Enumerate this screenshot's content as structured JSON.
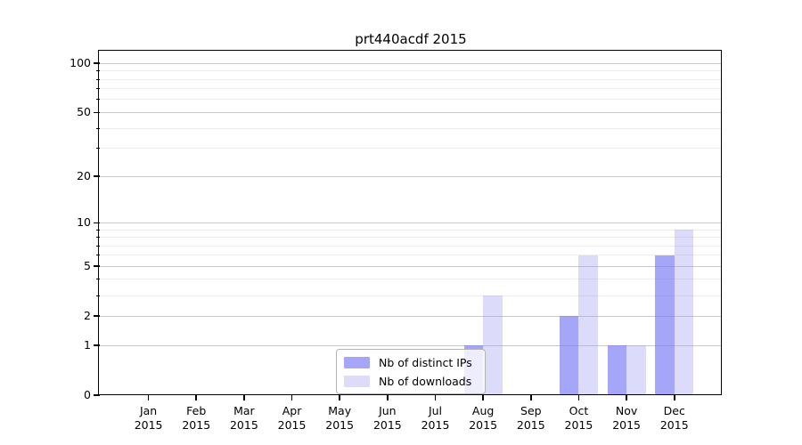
{
  "chart_data": {
    "type": "bar",
    "title": "prt440acdf 2015",
    "categories": [
      "Jan",
      "Feb",
      "Mar",
      "Apr",
      "May",
      "Jun",
      "Jul",
      "Aug",
      "Sep",
      "Oct",
      "Nov",
      "Dec"
    ],
    "x_tick_second_line": "2015",
    "series": [
      {
        "name": "Nb of distinct IPs",
        "color_key": "ips",
        "values": [
          0,
          0,
          0,
          0,
          0,
          0,
          0,
          1,
          0,
          2,
          1,
          6
        ]
      },
      {
        "name": "Nb of downloads",
        "color_key": "downloads",
        "values": [
          0,
          0,
          0,
          0,
          0,
          0,
          0,
          3,
          0,
          6,
          1,
          9
        ]
      }
    ],
    "yscale": "log1p",
    "yticks": [
      0,
      1,
      2,
      5,
      10,
      20,
      50,
      100
    ],
    "yticks_minor": [
      3,
      4,
      6,
      7,
      8,
      9,
      30,
      40,
      60,
      70,
      80,
      90
    ],
    "ylim": [
      0,
      118
    ],
    "xlabel": "",
    "ylabel": "",
    "grid": "on",
    "legend_position": "lower-center"
  },
  "colors": {
    "ips": "rgba(118,118,246,0.65)",
    "downloads": "rgba(155,155,240,0.35)",
    "ips_solid": "#a6a6f9",
    "downloads_solid": "#dcdcf8",
    "grid_major": "#c9c9c9",
    "grid_minor": "#ececec",
    "spine": "#000000"
  }
}
